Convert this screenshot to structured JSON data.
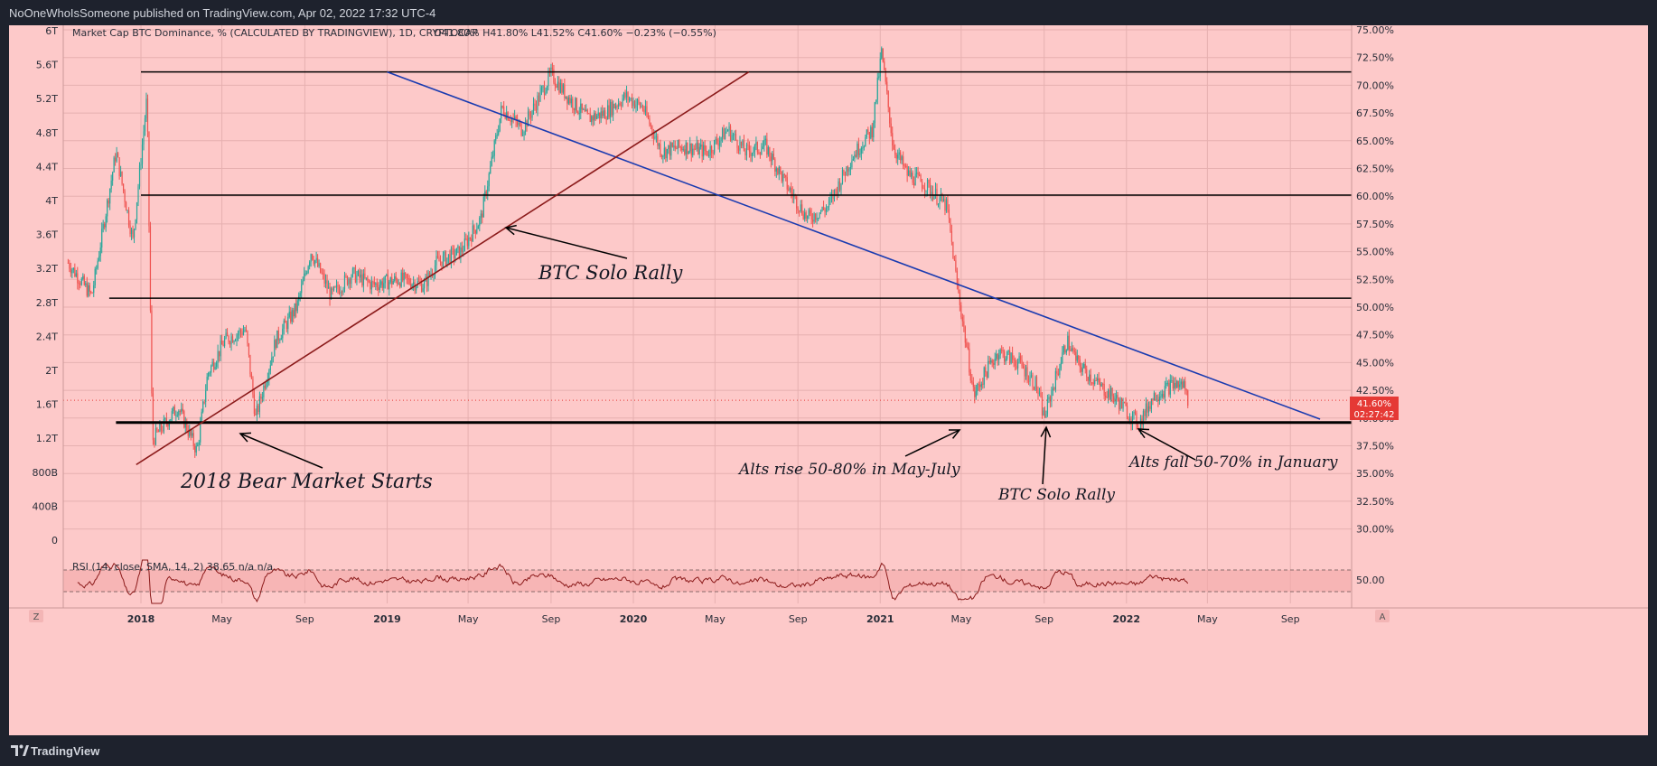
{
  "header": {
    "publish_line": "NoOneWhoIsSomeone published on TradingView.com, Apr 02, 2022 17:32 UTC-4"
  },
  "footer": {
    "brand": "TradingView"
  },
  "legend": {
    "main": "Market Cap BTC Dominance, % (CALCULATED BY TRADINGVIEW), 1D, CRYPTOCAP",
    "ohlc": "O41.80%  H41.80%  L41.52%  C41.60%  −0.23% (−0.55%)",
    "rsi": "RSI (14, close, SMA, 14, 2)  38.65  n/a  n/a"
  },
  "price_tag": {
    "value": "41.60%",
    "timer": "02:27:42"
  },
  "buttons": {
    "z": "Z",
    "a": "A"
  },
  "annotations": {
    "bear": "2018 Bear Market Starts",
    "solo1": "BTC Solo Rally",
    "alts_rise": "Alts rise 50-80% in May-July",
    "solo2": "BTC Solo Rally",
    "alts_fall": "Alts fall 50-70% in January"
  },
  "colors": {
    "background": "#fdc9c9",
    "candle_up": "#26a69a",
    "candle_down": "#ef5350",
    "rsi_line": "#8b1a1a",
    "trendline_blue": "#1a3bb0",
    "trendline_red": "#8b1a1a",
    "level_line": "#000000",
    "price_tag": "#e53935"
  },
  "chart_data": {
    "type": "line",
    "title": "Market Cap BTC Dominance, % (CALCULATED BY TRADINGVIEW), 1D, CRYPTOCAP",
    "y_right_ticks": [
      "75.00%",
      "72.50%",
      "70.00%",
      "67.50%",
      "65.00%",
      "62.50%",
      "60.00%",
      "57.50%",
      "55.00%",
      "52.50%",
      "50.00%",
      "47.50%",
      "45.00%",
      "42.50%",
      "40.00%",
      "37.50%",
      "35.00%",
      "32.50%",
      "30.00%"
    ],
    "y_right_values": [
      75,
      72.5,
      70,
      67.5,
      65,
      62.5,
      60,
      57.5,
      55,
      52.5,
      50,
      47.5,
      45,
      42.5,
      40,
      37.5,
      35,
      32.5,
      30
    ],
    "y_left_ticks": [
      "6T",
      "5.6T",
      "5.2T",
      "4.8T",
      "4.4T",
      "4T",
      "3.6T",
      "3.2T",
      "2.8T",
      "2.4T",
      "2T",
      "1.6T",
      "1.2T",
      "800B",
      "400B",
      "0"
    ],
    "x_ticks": [
      "2018",
      "May",
      "Sep",
      "2019",
      "May",
      "Sep",
      "2020",
      "May",
      "Sep",
      "2021",
      "May",
      "Sep",
      "2022",
      "May",
      "Sep"
    ],
    "x_tick_dates": [
      "2018-01-01",
      "2018-05-01",
      "2018-09-01",
      "2019-01-01",
      "2019-05-01",
      "2019-09-01",
      "2020-01-01",
      "2020-05-01",
      "2020-09-01",
      "2021-01-01",
      "2021-05-01",
      "2021-09-01",
      "2022-01-01",
      "2022-05-01",
      "2022-09-01"
    ],
    "ylim": [
      30,
      75
    ],
    "series": [
      {
        "name": "Market Cap BTC Dominance, %",
        "x": [
          "2017-09-15",
          "2017-10-20",
          "2017-11-25",
          "2017-12-20",
          "2018-01-10",
          "2018-01-18",
          "2018-02-25",
          "2018-03-25",
          "2018-04-10",
          "2018-05-05",
          "2018-06-05",
          "2018-06-20",
          "2018-07-20",
          "2018-08-20",
          "2018-09-10",
          "2018-10-10",
          "2018-11-10",
          "2018-12-10",
          "2019-01-20",
          "2019-02-25",
          "2019-03-15",
          "2019-04-20",
          "2019-05-20",
          "2019-06-20",
          "2019-07-20",
          "2019-08-15",
          "2019-09-01",
          "2019-09-25",
          "2019-10-25",
          "2019-11-20",
          "2019-12-20",
          "2020-01-15",
          "2020-02-12",
          "2020-03-15",
          "2020-04-20",
          "2020-05-20",
          "2020-06-15",
          "2020-07-15",
          "2020-08-15",
          "2020-09-15",
          "2020-10-15",
          "2020-11-20",
          "2020-12-20",
          "2021-01-03",
          "2021-01-20",
          "2021-02-10",
          "2021-03-10",
          "2021-04-10",
          "2021-04-25",
          "2021-05-20",
          "2021-06-05",
          "2021-06-25",
          "2021-07-25",
          "2021-08-20",
          "2021-09-01",
          "2021-09-15",
          "2021-10-05",
          "2021-10-20",
          "2021-11-20",
          "2021-12-20",
          "2022-01-10",
          "2022-01-20",
          "2022-02-10",
          "2022-02-25",
          "2022-03-10",
          "2022-03-28",
          "2022-04-02"
        ],
        "values": [
          54,
          51,
          64,
          56,
          69,
          38,
          41,
          37,
          44,
          47,
          48,
          40,
          47,
          50,
          55,
          51,
          53,
          52,
          52.5,
          52,
          54,
          55,
          58,
          68,
          66,
          69,
          71,
          69,
          67,
          67.5,
          69,
          68,
          64,
          64.5,
          64,
          66,
          64,
          64.5,
          61,
          58,
          59,
          63.5,
          66,
          73,
          64.5,
          62,
          61,
          59,
          52,
          42,
          44,
          46,
          45,
          43,
          40,
          43,
          47,
          45,
          43,
          41.5,
          40,
          39.5,
          42,
          42.5,
          43,
          43,
          41.6
        ]
      },
      {
        "name": "RSI (14, close, SMA, 14, 2)",
        "values": [
          38.65
        ]
      }
    ],
    "horizontal_levels_pct": [
      71.2,
      60.1,
      50.8,
      39.6
    ],
    "trendlines": [
      {
        "name": "descending",
        "from": [
          "2019-01-01",
          71.2
        ],
        "to": [
          "2022-10-15",
          39.9
        ]
      },
      {
        "name": "ascending",
        "from": [
          "2017-12-25",
          35.8
        ],
        "to": [
          "2020-06-20",
          71.2
        ]
      }
    ],
    "last_price": "41.60%",
    "grid": true
  }
}
